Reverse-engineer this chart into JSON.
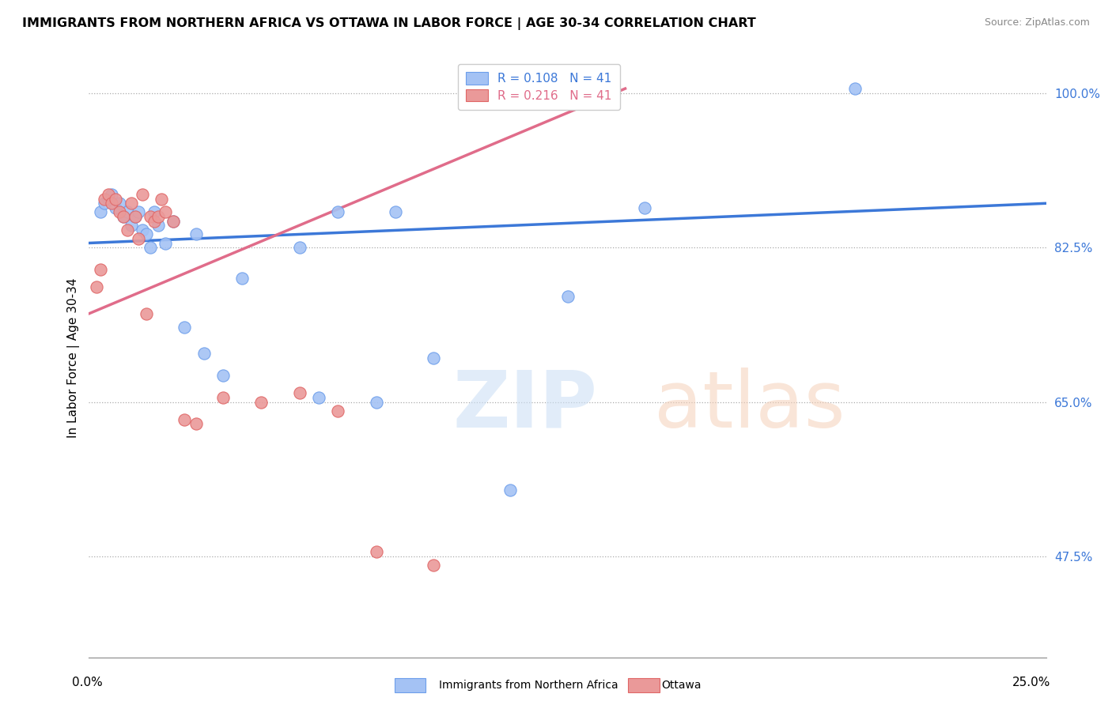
{
  "title": "IMMIGRANTS FROM NORTHERN AFRICA VS OTTAWA IN LABOR FORCE | AGE 30-34 CORRELATION CHART",
  "source": "Source: ZipAtlas.com",
  "ylabel": "In Labor Force | Age 30-34",
  "yticks": [
    47.5,
    65.0,
    82.5,
    100.0
  ],
  "ytick_labels": [
    "47.5%",
    "65.0%",
    "82.5%",
    "100.0%"
  ],
  "xmin": 0.0,
  "xmax": 25.0,
  "ymin": 36.0,
  "ymax": 104.0,
  "legend_blue_label": "Immigrants from Northern Africa",
  "legend_pink_label": "Ottawa",
  "r_blue": 0.108,
  "n_blue": 41,
  "r_pink": 0.216,
  "n_pink": 41,
  "blue_color": "#a4c2f4",
  "pink_color": "#ea9999",
  "blue_edge_color": "#6d9eeb",
  "pink_edge_color": "#e06666",
  "blue_line_color": "#3c78d8",
  "pink_line_color": "#e06c8a",
  "blue_scatter_x": [
    0.3,
    0.4,
    0.5,
    0.6,
    0.7,
    0.8,
    0.9,
    1.0,
    1.1,
    1.2,
    1.3,
    1.4,
    1.5,
    1.6,
    1.7,
    1.8,
    2.0,
    2.2,
    2.5,
    2.8,
    3.0,
    3.5,
    4.0,
    5.5,
    6.0,
    6.5,
    7.5,
    8.0,
    9.0,
    11.0,
    12.5,
    14.5,
    20.0
  ],
  "blue_scatter_y": [
    86.5,
    87.5,
    88.0,
    88.5,
    87.0,
    87.5,
    86.0,
    86.5,
    85.0,
    86.0,
    86.5,
    84.5,
    84.0,
    82.5,
    86.5,
    85.0,
    83.0,
    85.5,
    73.5,
    84.0,
    70.5,
    68.0,
    79.0,
    82.5,
    65.5,
    86.5,
    65.0,
    86.5,
    70.0,
    55.0,
    77.0,
    87.0,
    100.5
  ],
  "pink_scatter_x": [
    0.2,
    0.3,
    0.4,
    0.5,
    0.6,
    0.7,
    0.8,
    0.9,
    1.0,
    1.1,
    1.2,
    1.3,
    1.4,
    1.5,
    1.6,
    1.7,
    1.8,
    1.9,
    2.0,
    2.2,
    2.5,
    2.8,
    3.5,
    4.5,
    5.5,
    6.5,
    7.5,
    9.0
  ],
  "pink_scatter_y": [
    78.0,
    80.0,
    88.0,
    88.5,
    87.5,
    88.0,
    86.5,
    86.0,
    84.5,
    87.5,
    86.0,
    83.5,
    88.5,
    75.0,
    86.0,
    85.5,
    86.0,
    88.0,
    86.5,
    85.5,
    63.0,
    62.5,
    65.5,
    65.0,
    66.0,
    64.0,
    48.0,
    46.5
  ],
  "blue_trendline_x0": 0.0,
  "blue_trendline_y0": 83.0,
  "blue_trendline_x1": 25.0,
  "blue_trendline_y1": 87.5,
  "pink_trendline_x0": 0.0,
  "pink_trendline_y0": 75.0,
  "pink_trendline_x1": 14.0,
  "pink_trendline_y1": 100.5
}
